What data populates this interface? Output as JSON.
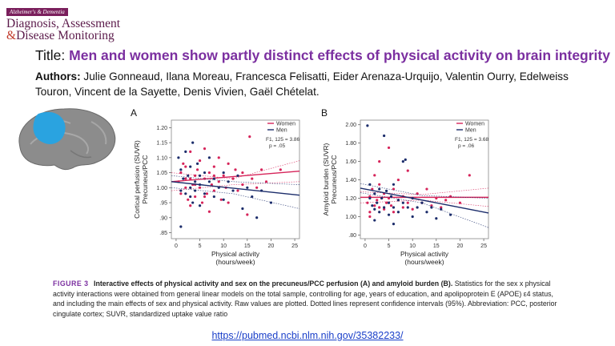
{
  "journal": {
    "band": "Alzheimer's & Dementia",
    "line1": "Diagnosis, Assessment",
    "line2_amp": "&",
    "line2": "Disease Monitoring"
  },
  "title": {
    "label": "Title:",
    "text": "Men and women show partly distinct effects of physical activity on brain integrity"
  },
  "authors": {
    "label": "Authors:",
    "text": "Julie Gonneaud, Ilana Moreau, Francesca Felisatti, Eider Arenaza-Urquijo, Valentin Ourry, Edelweiss Touron, Vincent de la Sayette, Denis Vivien, Gaël Chételat."
  },
  "colors": {
    "women": "#d6245a",
    "men": "#1c2d6b",
    "accent": "#7b2fa0",
    "brain_highlight": "#2aa3e0"
  },
  "chart_data": [
    {
      "type": "scatter",
      "panel": "A",
      "ylabel_line1": "Cortical perfusion (SUVR)",
      "ylabel_line2": "Precuneus/PCC",
      "xlabel_line1": "Physical activity",
      "xlabel_line2": "(hours/week)",
      "xlim": [
        -1,
        26
      ],
      "ylim": [
        0.83,
        1.225
      ],
      "xticks": [
        0,
        5,
        10,
        15,
        20,
        25
      ],
      "yticks": [
        0.85,
        0.9,
        0.95,
        1.0,
        1.05,
        1.1,
        1.15,
        1.2
      ],
      "ytick_labels": [
        ".85",
        ".90",
        ".95",
        "1.00",
        "1.05",
        "1.10",
        "1.15",
        "1.20"
      ],
      "legend": {
        "position": "top-right",
        "entries": [
          "Women",
          "Men"
        ]
      },
      "stat_line1": "F1, 125 = 3.86",
      "stat_line2": "p = .05",
      "series": [
        {
          "name": "Women",
          "fit": [
            [
              -1,
              1.02
            ],
            [
              26,
              1.055
            ]
          ],
          "ci_upper": [
            [
              -1,
              1.05
            ],
            [
              12,
              1.03
            ],
            [
              26,
              1.09
            ]
          ],
          "ci_lower": [
            [
              -1,
              0.99
            ],
            [
              12,
              1.01
            ],
            [
              26,
              1.02
            ]
          ],
          "points": [
            [
              0.5,
              1.02
            ],
            [
              1,
              1.05
            ],
            [
              1,
              0.98
            ],
            [
              1.5,
              1.08
            ],
            [
              2,
              1.0
            ],
            [
              2,
              1.07
            ],
            [
              2.5,
              0.96
            ],
            [
              3,
              1.03
            ],
            [
              3,
              0.94
            ],
            [
              3,
              1.12
            ],
            [
              3.5,
              1.01
            ],
            [
              4,
              1.04
            ],
            [
              4,
              0.97
            ],
            [
              4.5,
              1.06
            ],
            [
              5,
              1.0
            ],
            [
              5,
              1.09
            ],
            [
              5.5,
              0.95
            ],
            [
              6,
              1.03
            ],
            [
              6,
              1.13
            ],
            [
              6.5,
              0.98
            ],
            [
              7,
              1.05
            ],
            [
              7,
              0.92
            ],
            [
              7.5,
              1.01
            ],
            [
              8,
              1.07
            ],
            [
              8,
              0.99
            ],
            [
              9,
              1.02
            ],
            [
              9,
              1.1
            ],
            [
              9.5,
              0.96
            ],
            [
              10,
              1.04
            ],
            [
              10.5,
              1.0
            ],
            [
              11,
              1.08
            ],
            [
              11,
              0.95
            ],
            [
              12,
              1.03
            ],
            [
              12.5,
              1.06
            ],
            [
              13,
              0.99
            ],
            [
              14,
              1.05
            ],
            [
              14,
              1.01
            ],
            [
              15,
              0.91
            ],
            [
              15.5,
              1.17
            ],
            [
              16,
              1.03
            ],
            [
              17,
              1.0
            ],
            [
              18,
              1.06
            ],
            [
              19,
              1.02
            ],
            [
              22,
              1.06
            ],
            [
              2,
              1.03
            ],
            [
              4,
              1.01
            ],
            [
              6,
              0.97
            ],
            [
              8,
              1.04
            ]
          ]
        },
        {
          "name": "Men",
          "fit": [
            [
              -1,
              1.02
            ],
            [
              26,
              0.975
            ]
          ],
          "ci_upper": [
            [
              -1,
              1.04
            ],
            [
              12,
              1.02
            ],
            [
              26,
              1.01
            ]
          ],
          "ci_lower": [
            [
              -1,
              1.0
            ],
            [
              12,
              0.98
            ],
            [
              26,
              0.93
            ]
          ],
          "points": [
            [
              0.5,
              1.1
            ],
            [
              1,
              1.06
            ],
            [
              1,
              0.99
            ],
            [
              1.5,
              1.03
            ],
            [
              2,
              1.12
            ],
            [
              2,
              0.98
            ],
            [
              2.5,
              1.04
            ],
            [
              3,
              1.0
            ],
            [
              3,
              1.07
            ],
            [
              3.5,
              0.95
            ],
            [
              3.5,
              1.15
            ],
            [
              4,
              1.02
            ],
            [
              4,
              0.99
            ],
            [
              4.5,
              1.08
            ],
            [
              5,
              1.01
            ],
            [
              5,
              0.94
            ],
            [
              6,
              1.05
            ],
            [
              6,
              0.98
            ],
            [
              7,
              1.02
            ],
            [
              7,
              1.1
            ],
            [
              8,
              0.97
            ],
            [
              8,
              1.03
            ],
            [
              9,
              1.0
            ],
            [
              10,
              1.05
            ],
            [
              10,
              0.96
            ],
            [
              11,
              1.02
            ],
            [
              12,
              0.99
            ],
            [
              13,
              1.04
            ],
            [
              14,
              0.93
            ],
            [
              15,
              1.0
            ],
            [
              16,
              0.97
            ],
            [
              17,
              0.9
            ],
            [
              18,
              0.99
            ],
            [
              20,
              0.95
            ],
            [
              1,
              0.87
            ],
            [
              3,
              0.97
            ],
            [
              5,
              1.04
            ]
          ]
        }
      ]
    },
    {
      "type": "scatter",
      "panel": "B",
      "ylabel_line1": "Amyloid burden (SUVR)",
      "ylabel_line2": "Precuneus/PCC",
      "xlabel_line1": "Physical activity",
      "xlabel_line2": "(hours/week)",
      "xlim": [
        -1,
        26
      ],
      "ylim": [
        0.76,
        2.05
      ],
      "xticks": [
        0,
        5,
        10,
        15,
        20,
        25
      ],
      "yticks": [
        0.8,
        1.0,
        1.2,
        1.4,
        1.6,
        1.8,
        2.0
      ],
      "ytick_labels": [
        ".80",
        "1.00",
        "1.20",
        "1.40",
        "1.60",
        "1.80",
        "2.00"
      ],
      "legend": {
        "position": "top-right",
        "entries": [
          "Women",
          "Men"
        ]
      },
      "stat_line1": "F1, 125 = 3.68",
      "stat_line2": "p = .06",
      "series": [
        {
          "name": "Women",
          "fit": [
            [
              -1,
              1.21
            ],
            [
              26,
              1.21
            ]
          ],
          "ci_upper": [
            [
              -1,
              1.27
            ],
            [
              12,
              1.24
            ],
            [
              26,
              1.31
            ]
          ],
          "ci_lower": [
            [
              -1,
              1.15
            ],
            [
              12,
              1.18
            ],
            [
              26,
              1.11
            ]
          ],
          "points": [
            [
              0.5,
              1.15
            ],
            [
              1,
              1.22
            ],
            [
              1,
              1.05
            ],
            [
              1.5,
              1.3
            ],
            [
              2,
              1.12
            ],
            [
              2,
              1.45
            ],
            [
              2.5,
              1.18
            ],
            [
              3,
              1.1
            ],
            [
              3,
              1.35
            ],
            [
              3.5,
              1.2
            ],
            [
              4,
              1.08
            ],
            [
              4,
              1.25
            ],
            [
              4.5,
              1.15
            ],
            [
              5,
              1.75
            ],
            [
              5,
              1.2
            ],
            [
              5.5,
              1.12
            ],
            [
              6,
              1.3
            ],
            [
              6,
              1.05
            ],
            [
              7,
              1.18
            ],
            [
              7,
              1.4
            ],
            [
              8,
              1.1
            ],
            [
              8,
              1.22
            ],
            [
              9,
              1.15
            ],
            [
              9,
              1.5
            ],
            [
              10,
              1.2
            ],
            [
              10,
              1.08
            ],
            [
              11,
              1.25
            ],
            [
              12,
              1.15
            ],
            [
              13,
              1.3
            ],
            [
              14,
              1.12
            ],
            [
              15,
              1.2
            ],
            [
              16,
              1.1
            ],
            [
              17,
              1.18
            ],
            [
              18,
              1.22
            ],
            [
              20,
              1.15
            ],
            [
              22,
              1.45
            ],
            [
              3,
              1.6
            ],
            [
              1,
              1.0
            ]
          ]
        },
        {
          "name": "Men",
          "fit": [
            [
              -1,
              1.31
            ],
            [
              26,
              1.04
            ]
          ],
          "ci_upper": [
            [
              -1,
              1.36
            ],
            [
              12,
              1.23
            ],
            [
              26,
              1.2
            ]
          ],
          "ci_lower": [
            [
              -1,
              1.26
            ],
            [
              12,
              1.15
            ],
            [
              26,
              0.88
            ]
          ],
          "points": [
            [
              0.5,
              1.99
            ],
            [
              1,
              1.2
            ],
            [
              1,
              1.35
            ],
            [
              1.5,
              1.12
            ],
            [
              2,
              1.25
            ],
            [
              2,
              1.08
            ],
            [
              2.5,
              1.15
            ],
            [
              3,
              1.3
            ],
            [
              3,
              1.05
            ],
            [
              3.5,
              1.2
            ],
            [
              4,
              1.88
            ],
            [
              4,
              1.1
            ],
            [
              4.5,
              1.28
            ],
            [
              5,
              1.15
            ],
            [
              5,
              1.02
            ],
            [
              5.5,
              1.22
            ],
            [
              6,
              1.1
            ],
            [
              6,
              1.35
            ],
            [
              7,
              1.18
            ],
            [
              7,
              1.05
            ],
            [
              8,
              1.15
            ],
            [
              8,
              1.6
            ],
            [
              8.5,
              1.62
            ],
            [
              9,
              1.1
            ],
            [
              10,
              1.2
            ],
            [
              10,
              1.0
            ],
            [
              11,
              1.1
            ],
            [
              12,
              1.15
            ],
            [
              13,
              1.05
            ],
            [
              14,
              1.1
            ],
            [
              15,
              0.98
            ],
            [
              16,
              1.08
            ],
            [
              18,
              1.02
            ],
            [
              2,
              0.96
            ],
            [
              6,
              0.92
            ]
          ]
        }
      ]
    }
  ],
  "caption": {
    "fig_label": "FIGURE 3",
    "head": "Interactive effects of physical activity and sex on the precuneus/PCC perfusion (A) and amyloid burden (B).",
    "body": "Statistics for the sex x physical activity interactions were obtained from general linear models on the total sample, controlling for age, years of education, and apolipoprotein E (APOE) ε4 status, and including the main effects of sex and physical activity. Raw values are plotted. Dotted lines represent confidence intervals (95%). Abbreviation: PCC, posterior cingulate cortex; SUVR, standardized uptake value ratio"
  },
  "link": "https://pubmed.ncbi.nlm.nih.gov/35382233/"
}
